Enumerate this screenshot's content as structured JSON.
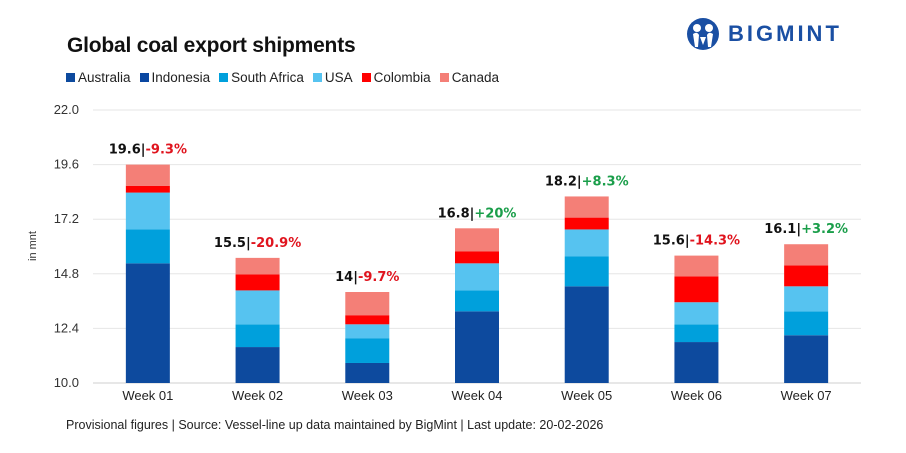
{
  "header": {
    "title": "Global coal export shipments",
    "brand": "BIGMINT"
  },
  "footer": {
    "note": "Provisional figures | Source: Vessel-line up data maintained by BigMint | Last update: 20-02-2026"
  },
  "colors": {
    "positive": "#1a9e4a",
    "negative": "#e0141e",
    "total_label": "#111111",
    "brand": "#1a4fa3"
  },
  "chart_data": {
    "type": "bar",
    "stacked": true,
    "title": "Global coal export shipments",
    "xlabel": "",
    "ylabel": "in mnt",
    "ylim": [
      10.0,
      22.0
    ],
    "yticks": [
      "10.0",
      "12.4",
      "14.8",
      "17.2",
      "19.6",
      "22.0"
    ],
    "grid": true,
    "legend_position": "top-left",
    "categories": [
      "Week 01",
      "Week 02",
      "Week 03",
      "Week 04",
      "Week 05",
      "Week 06",
      "Week 07"
    ],
    "series": [
      {
        "name": "Australia",
        "color": "#0d4a9e",
        "values": [
          5.26,
          1.58,
          0.88,
          3.15,
          4.25,
          1.8,
          2.1
        ]
      },
      {
        "name": "Indonesia",
        "color": "#0a47a1",
        "values": [
          0,
          0,
          0,
          0,
          0,
          0,
          0
        ]
      },
      {
        "name": "South Africa",
        "color": "#00a0dc",
        "values": [
          1.49,
          1.0,
          1.09,
          0.92,
          1.31,
          0.78,
          1.05
        ]
      },
      {
        "name": "USA",
        "color": "#56c3f0",
        "values": [
          1.62,
          1.49,
          0.61,
          1.19,
          1.19,
          0.97,
          1.1
        ]
      },
      {
        "name": "Colombia",
        "color": "#ff0000",
        "values": [
          0.3,
          0.7,
          0.4,
          0.52,
          0.52,
          1.14,
          0.92
        ]
      },
      {
        "name": "Canada",
        "color": "#f47f77",
        "values": [
          0.93,
          0.73,
          1.02,
          1.02,
          0.93,
          0.91,
          0.93
        ]
      }
    ],
    "baseline": 10.0,
    "data_labels": [
      {
        "total": "19.6",
        "change": "-9.3%",
        "direction": "negative"
      },
      {
        "total": "15.5",
        "change": "-20.9%",
        "direction": "negative"
      },
      {
        "total": "14",
        "change": "-9.7%",
        "direction": "negative"
      },
      {
        "total": "16.8",
        "change": "+20%",
        "direction": "positive"
      },
      {
        "total": "18.2",
        "change": "+8.3%",
        "direction": "positive"
      },
      {
        "total": "15.6",
        "change": "-14.3%",
        "direction": "negative"
      },
      {
        "total": "16.1",
        "change": "+3.2%",
        "direction": "positive"
      }
    ]
  }
}
